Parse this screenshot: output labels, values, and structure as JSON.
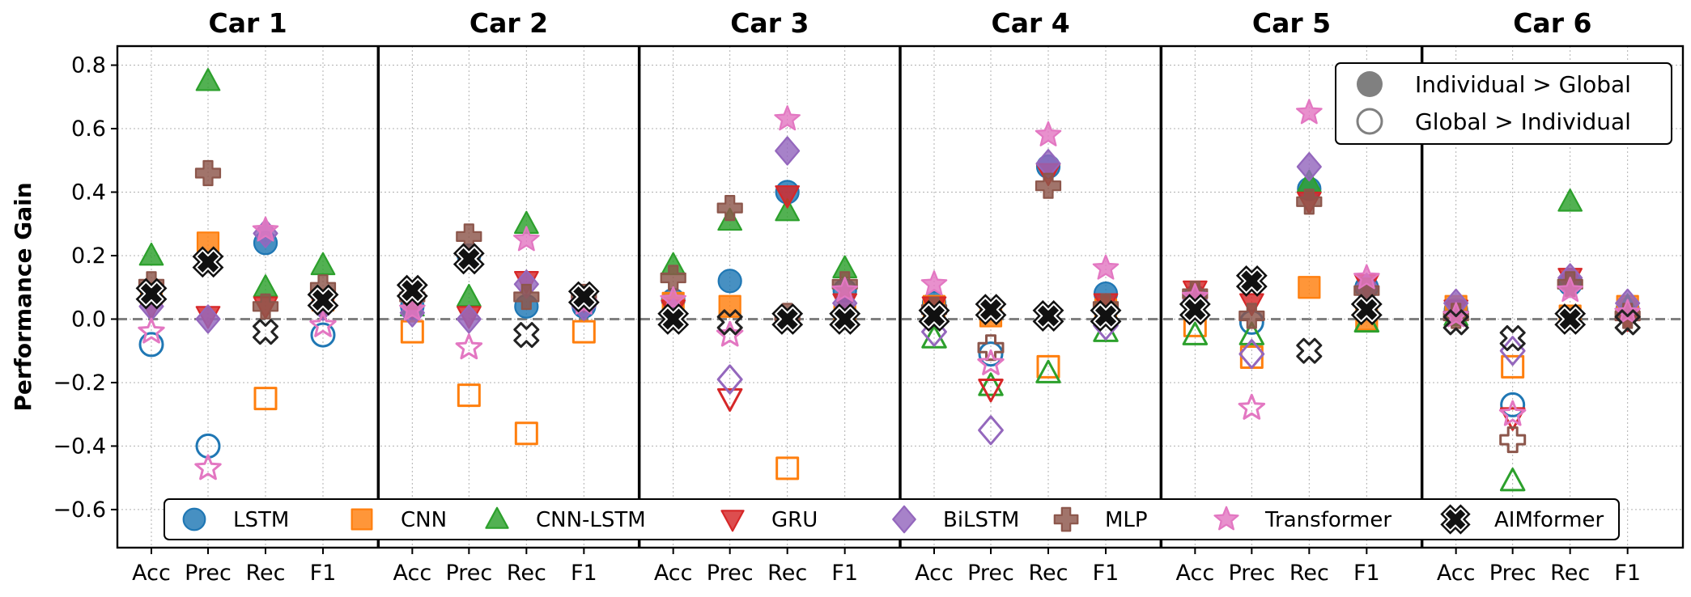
{
  "chart_data": {
    "type": "scatter",
    "ylabel": "Performance Gain",
    "ylim": [
      -0.72,
      0.86
    ],
    "yticks": [
      -0.6,
      -0.4,
      -0.2,
      0.0,
      0.2,
      0.4,
      0.6,
      0.8
    ],
    "ytick_labels": [
      "−0.6",
      "−0.4",
      "−0.2",
      "0.0",
      "0.2",
      "0.4",
      "0.6",
      "0.8"
    ],
    "grid": true,
    "reference_line": 0.0,
    "panels": [
      "Car 1",
      "Car 2",
      "Car 3",
      "Car 4",
      "Car 5",
      "Car 6"
    ],
    "metrics": [
      "Acc",
      "Prec",
      "Rec",
      "F1"
    ],
    "fill_legend": {
      "placement": "top-right",
      "filled_label": "Individual > Global",
      "hollow_label": "Global > Individual"
    },
    "model_legend_placement": "bottom",
    "series": [
      {
        "name": "LSTM",
        "marker": "circle",
        "color": "#1f77b4",
        "values": [
          [
            -0.08,
            -0.4,
            0.24,
            -0.05
          ],
          [
            0.04,
            0.2,
            0.04,
            0.04
          ],
          [
            0.06,
            0.12,
            0.4,
            0.09
          ],
          [
            0.05,
            -0.11,
            0.48,
            0.08
          ],
          [
            0.07,
            -0.01,
            0.41,
            0.1
          ],
          [
            0.03,
            -0.27,
            0.11,
            0.03
          ]
        ]
      },
      {
        "name": "CNN",
        "marker": "square",
        "color": "#ff7f0e",
        "values": [
          [
            0.08,
            0.24,
            -0.25,
            0.06
          ],
          [
            -0.04,
            -0.24,
            -0.36,
            -0.04
          ],
          [
            0.05,
            0.04,
            -0.47,
            0.01
          ],
          [
            0.04,
            0.01,
            -0.15,
            0.03
          ],
          [
            -0.02,
            -0.12,
            0.1,
            0.0
          ],
          [
            0.04,
            -0.15,
            0.01,
            0.04
          ]
        ]
      },
      {
        "name": "CNN-LSTM",
        "marker": "triangle-up",
        "color": "#2ca02c",
        "values": [
          [
            0.2,
            0.75,
            0.1,
            0.17
          ],
          [
            0.04,
            0.07,
            0.3,
            0.07
          ],
          [
            0.17,
            0.31,
            0.34,
            0.16
          ],
          [
            -0.06,
            -0.21,
            -0.17,
            -0.04
          ],
          [
            -0.05,
            -0.05,
            0.43,
            -0.01
          ],
          [
            0.01,
            -0.51,
            0.37,
            0.04
          ]
        ]
      },
      {
        "name": "GRU",
        "marker": "triangle-down",
        "color": "#d62728",
        "values": [
          [
            0.04,
            0.01,
            0.04,
            0.04
          ],
          [
            0.04,
            0.01,
            0.12,
            0.06
          ],
          [
            0.03,
            -0.25,
            0.39,
            0.05
          ],
          [
            0.04,
            -0.22,
            0.46,
            0.05
          ],
          [
            0.09,
            0.05,
            0.37,
            0.11
          ],
          [
            0.03,
            -0.31,
            0.13,
            0.0
          ]
        ]
      },
      {
        "name": "BiLSTM",
        "marker": "diamond",
        "color": "#9467bd",
        "values": [
          [
            0.04,
            0.0,
            0.27,
            0.04
          ],
          [
            0.02,
            0.0,
            0.11,
            0.04
          ],
          [
            0.02,
            -0.19,
            0.53,
            0.05
          ],
          [
            -0.04,
            -0.35,
            0.49,
            -0.02
          ],
          [
            0.06,
            -0.11,
            0.48,
            0.1
          ],
          [
            0.05,
            -0.1,
            0.13,
            0.05
          ]
        ]
      },
      {
        "name": "MLP",
        "marker": "plus",
        "color": "#8c564b",
        "values": [
          [
            0.11,
            0.46,
            0.04,
            0.1
          ],
          [
            0.07,
            0.26,
            0.07,
            0.07
          ],
          [
            0.13,
            0.35,
            0.01,
            0.11
          ],
          [
            0.03,
            -0.09,
            0.42,
            0.04
          ],
          [
            0.08,
            0.01,
            0.37,
            0.09
          ],
          [
            0.01,
            -0.38,
            0.11,
            0.01
          ]
        ]
      },
      {
        "name": "Transformer",
        "marker": "star",
        "color": "#e377c2",
        "values": [
          [
            -0.04,
            -0.47,
            0.28,
            -0.02
          ],
          [
            0.03,
            -0.09,
            0.25,
            0.05
          ],
          [
            0.06,
            -0.05,
            0.63,
            0.09
          ],
          [
            0.11,
            -0.14,
            0.58,
            0.16
          ],
          [
            0.07,
            -0.28,
            0.65,
            0.13
          ],
          [
            0.01,
            -0.3,
            0.09,
            0.02
          ]
        ]
      },
      {
        "name": "AIMformer",
        "marker": "x",
        "color": "#222222",
        "values": [
          [
            0.08,
            0.18,
            -0.04,
            0.06
          ],
          [
            0.09,
            0.19,
            -0.05,
            0.07
          ],
          [
            0.0,
            -0.01,
            0.0,
            0.0
          ],
          [
            0.01,
            0.03,
            0.01,
            0.01
          ],
          [
            0.03,
            0.12,
            -0.1,
            0.03
          ],
          [
            -0.01,
            -0.06,
            0.0,
            -0.01
          ]
        ]
      }
    ]
  }
}
